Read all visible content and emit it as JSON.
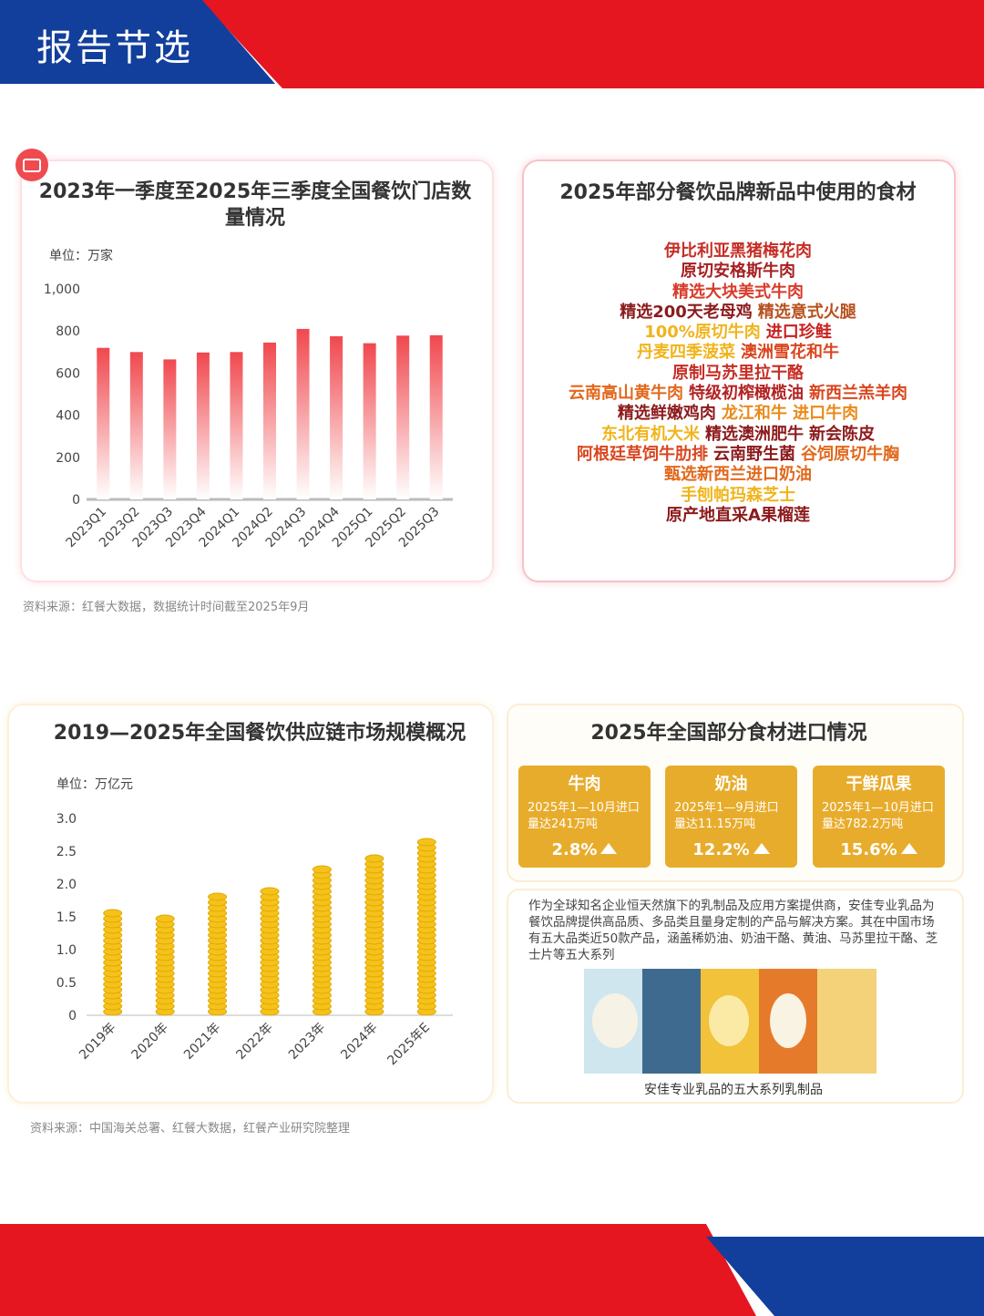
{
  "header": {
    "title": "报告节选"
  },
  "chart_data": [
    {
      "type": "bar",
      "style": "gradient",
      "title": "2023年一季度至2025年三季度全国餐饮门店数量情况",
      "unit": "单位：万家",
      "categories": [
        "2023Q1",
        "2023Q2",
        "2023Q3",
        "2023Q4",
        "2024Q1",
        "2024Q2",
        "2024Q3",
        "2024Q4",
        "2025Q1",
        "2025Q2",
        "2025Q3"
      ],
      "values": [
        720,
        700,
        665,
        698,
        700,
        745,
        810,
        775,
        742,
        778,
        780
      ],
      "color": "#f0484e",
      "ylim": [
        0,
        1000
      ],
      "yticks": [
        0,
        200,
        400,
        600,
        800,
        {
          "value": 1000,
          "label": "1,000"
        }
      ],
      "source": "资料来源：红餐大数据，数据统计时间截至2025年9月"
    },
    {
      "type": "bar",
      "style": "coins",
      "title": "2019—2025年全国餐饮供应链市场规模概况",
      "unit": "单位：万亿元",
      "categories": [
        "2019年",
        "2020年",
        "2021年",
        "2022年",
        "2023年",
        "2024年",
        "2025年E"
      ],
      "values": [
        1.62,
        1.55,
        1.87,
        1.95,
        2.32,
        2.52,
        2.72
      ],
      "color": "#f5c21b",
      "ylim": [
        0,
        3
      ],
      "yticks": [
        0,
        0.5,
        {
          "value": 1,
          "label": "1.0"
        },
        1.5,
        {
          "value": 2,
          "label": "2.0"
        },
        2.5,
        {
          "value": 3,
          "label": "3.0"
        }
      ],
      "source": "资料来源：中国海关总署、红餐大数据，红餐产业研究院整理"
    }
  ],
  "ingredients": {
    "title": "2025年部分餐饮品牌新品中使用的食材",
    "lines": [
      [
        {
          "text": "伊比利亚黑猪梅花肉",
          "color": "#c62d25"
        }
      ],
      [
        {
          "text": "原切安格斯牛肉",
          "color": "#a61f22"
        }
      ],
      [
        {
          "text": "精选大块美式牛肉",
          "color": "#d63b2a"
        }
      ],
      [
        {
          "text": "精选200天老母鸡",
          "color": "#8c1a1c"
        },
        {
          "text": "精选意式火腿",
          "color": "#b8501d"
        }
      ],
      [
        {
          "text": "100%原切牛肉",
          "color": "#f0b41c"
        },
        {
          "text": "进口珍鲑",
          "color": "#c8201f"
        }
      ],
      [
        {
          "text": "丹麦四季菠菜",
          "color": "#f0b41c"
        },
        {
          "text": "澳洲雪花和牛",
          "color": "#d9461f"
        }
      ],
      [
        {
          "text": "原制马苏里拉干酪",
          "color": "#c62d25"
        }
      ],
      [
        {
          "text": "云南高山黄牛肉",
          "color": "#e2681c"
        },
        {
          "text": "特级初榨橄榄油",
          "color": "#b22222"
        },
        {
          "text": "新西兰羔羊肉",
          "color": "#d9461f"
        }
      ],
      [
        {
          "text": "精选鲜嫩鸡肉",
          "color": "#8c1a1c"
        },
        {
          "text": "龙江和牛 进口牛肉",
          "color": "#ea8a1a"
        }
      ],
      [
        {
          "text": "东北有机大米",
          "color": "#f0b41c"
        },
        {
          "text": "精选澳洲肥牛",
          "color": "#8c1a1c"
        },
        {
          "text": "新会陈皮",
          "color": "#8c1a1c"
        }
      ],
      [
        {
          "text": "阿根廷草饲牛肋排",
          "color": "#d9461f"
        },
        {
          "text": "云南野生菌",
          "color": "#8c1a1c"
        },
        {
          "text": "谷饲原切牛胸",
          "color": "#e2681c"
        }
      ],
      [
        {
          "text": "甄选新西兰进口奶油",
          "color": "#e2681c"
        }
      ],
      [
        {
          "text": "手刨帕玛森芝士",
          "color": "#f0b41c"
        }
      ],
      [
        {
          "text": "原产地直采A果榴莲",
          "color": "#8c1a1c"
        }
      ]
    ]
  },
  "imports": {
    "title": "2025年全国部分食材进口情况",
    "items": [
      {
        "name": "牛肉",
        "desc": "2025年1—10月进口量达241万吨",
        "change": "2.8%"
      },
      {
        "name": "奶油",
        "desc": "2025年1—9月进口量达11.15万吨",
        "change": "12.2%"
      },
      {
        "name": "干鲜瓜果",
        "desc": "2025年1—10月进口量达782.2万吨",
        "change": "15.6%"
      }
    ],
    "text": "作为全球知名企业恒天然旗下的乳制品及应用方案提供商，安佳专业乳品为餐饮品牌提供高品质、多品类且量身定制的产品与解决方案。其在中国市场有五大品类近50款产品，涵盖稀奶油、奶油干酪、黄油、马苏里拉干酪、芝士片等五大系列",
    "caption": "安佳专业乳品的五大系列乳制品"
  }
}
